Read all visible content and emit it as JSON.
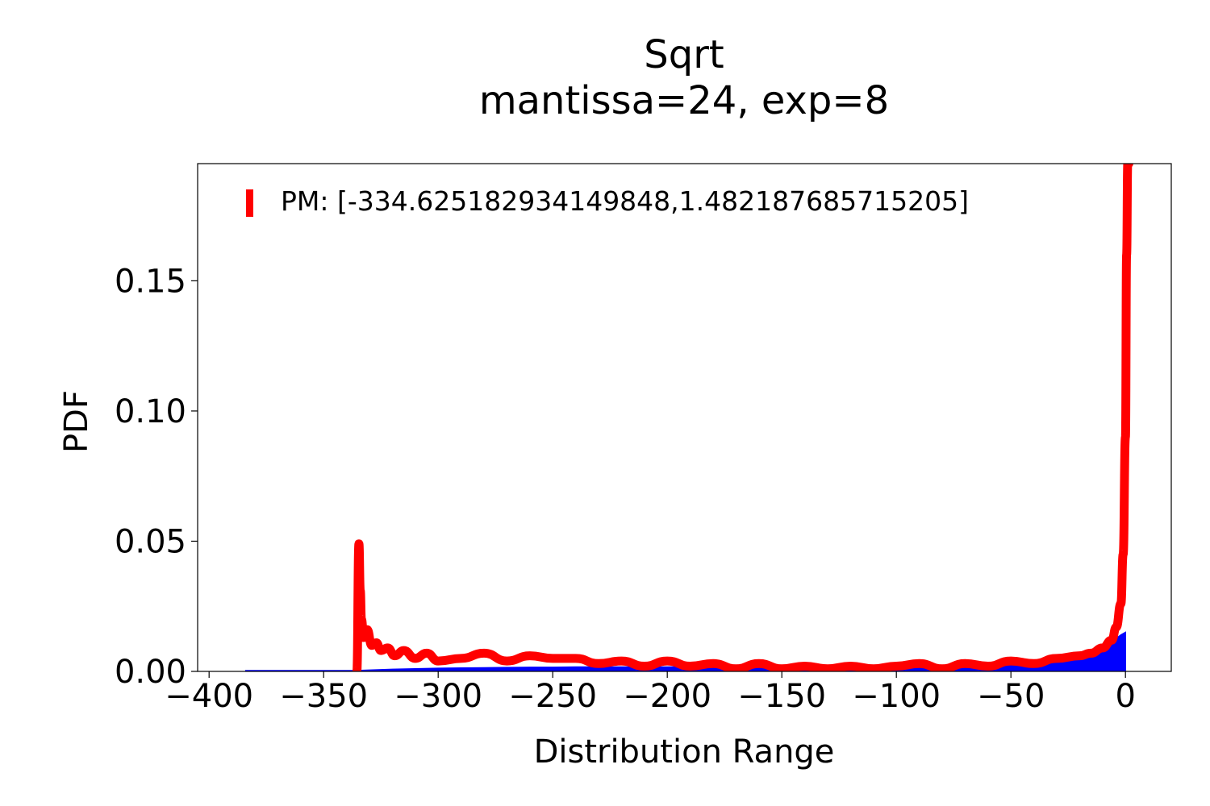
{
  "chart_data": {
    "type": "area",
    "title": "Sqrt",
    "subtitle": "mantissa=24, exp=8",
    "xlabel": "Distribution Range",
    "ylabel": "PDF",
    "xlim": [
      -405,
      20
    ],
    "ylim": [
      0,
      0.195
    ],
    "xticks": [
      -400,
      -350,
      -300,
      -250,
      -200,
      -150,
      -100,
      -50,
      0
    ],
    "xtick_labels": [
      "−400",
      "−350",
      "−300",
      "−250",
      "−200",
      "−150",
      "−100",
      "−50",
      "0"
    ],
    "yticks": [
      0.0,
      0.05,
      0.1,
      0.15
    ],
    "ytick_labels": [
      "0.00",
      "0.05",
      "0.10",
      "0.15"
    ],
    "grid": false,
    "legend_position": "top-left",
    "colors": {
      "histogram": "#0000ff",
      "pm": "#ff0000"
    },
    "series": [
      {
        "name": "",
        "kind": "histogram",
        "x": [
          -384,
          -370,
          -350,
          -336,
          -330,
          -320,
          -310,
          -300,
          -290,
          -280,
          -270,
          -260,
          -250,
          -240,
          -230,
          -220,
          -210,
          -200,
          -190,
          -180,
          -170,
          -160,
          -150,
          -140,
          -130,
          -120,
          -110,
          -100,
          -90,
          -80,
          -70,
          -60,
          -50,
          -40,
          -30,
          -20,
          -10,
          -5,
          -2,
          0
        ],
        "y": [
          0.0003,
          0.0003,
          0.0003,
          0.0003,
          0.0005,
          0.0008,
          0.001,
          0.0012,
          0.0013,
          0.0014,
          0.0015,
          0.0016,
          0.0016,
          0.0017,
          0.0017,
          0.0017,
          0.0017,
          0.0017,
          0.0018,
          0.0018,
          0.0018,
          0.0018,
          0.0018,
          0.0019,
          0.0019,
          0.002,
          0.002,
          0.0021,
          0.0022,
          0.0023,
          0.0025,
          0.0028,
          0.0033,
          0.004,
          0.005,
          0.0065,
          0.009,
          0.012,
          0.014,
          0.015
        ]
      },
      {
        "name": "PM: [-334.625182934149848,1.482187685715205]",
        "kind": "line",
        "x": [
          -335.5,
          -334.6,
          -334.0,
          -333.5,
          -332.5,
          -331.0,
          -329.0,
          -327.0,
          -325.0,
          -322.0,
          -319.0,
          -315.0,
          -310.0,
          -305.0,
          -300.0,
          -290.0,
          -280.0,
          -270.0,
          -260.0,
          -250.0,
          -240.0,
          -230.0,
          -220.0,
          -210.0,
          -200.0,
          -190.0,
          -180.0,
          -170.0,
          -160.0,
          -150.0,
          -140.0,
          -130.0,
          -120.0,
          -110.0,
          -100.0,
          -90.0,
          -80.0,
          -70.0,
          -60.0,
          -50.0,
          -40.0,
          -30.0,
          -20.0,
          -15.0,
          -10.0,
          -6.0,
          -4.0,
          -2.0,
          -1.0,
          0.0,
          0.5,
          1.0,
          1.3,
          1.48
        ],
        "y": [
          0.0,
          0.049,
          0.031,
          0.02,
          0.013,
          0.016,
          0.01,
          0.011,
          0.008,
          0.009,
          0.006,
          0.008,
          0.005,
          0.007,
          0.004,
          0.005,
          0.007,
          0.004,
          0.006,
          0.005,
          0.005,
          0.003,
          0.004,
          0.002,
          0.004,
          0.002,
          0.003,
          0.001,
          0.003,
          0.001,
          0.002,
          0.001,
          0.002,
          0.001,
          0.002,
          0.003,
          0.001,
          0.003,
          0.002,
          0.004,
          0.003,
          0.005,
          0.006,
          0.007,
          0.009,
          0.012,
          0.017,
          0.026,
          0.045,
          0.09,
          0.16,
          0.195,
          0.195,
          0.195
        ]
      }
    ]
  }
}
